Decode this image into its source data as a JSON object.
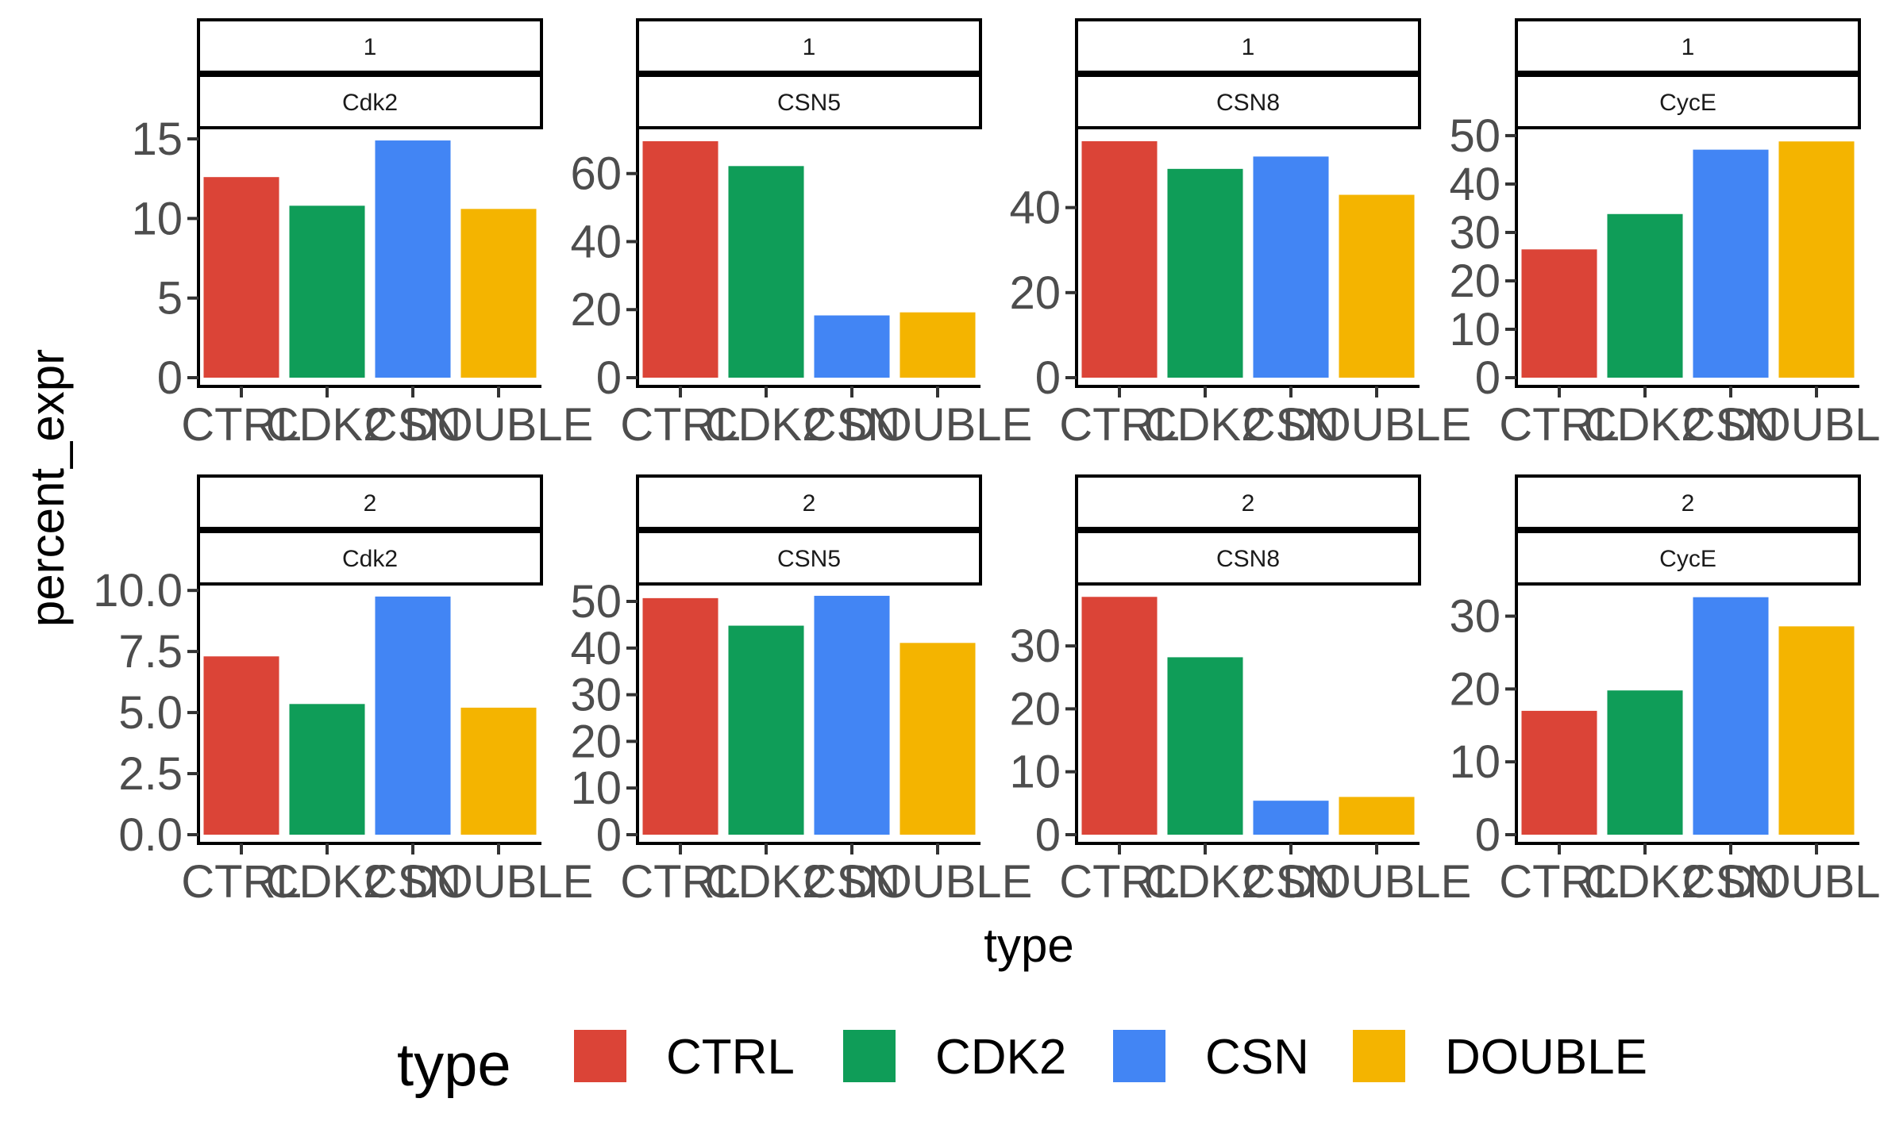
{
  "chart_data": {
    "type": "bar",
    "facet_rows": 2,
    "facet_cols": 4,
    "categories": [
      "CTRL",
      "CDK2",
      "CSN",
      "DOUBLE"
    ],
    "xlabel": "type",
    "ylabel": "percent_expr",
    "legend": {
      "title": "type",
      "position": "bottom",
      "entries": [
        "CTRL",
        "CDK2",
        "CSN",
        "DOUBLE"
      ]
    },
    "colors": {
      "CTRL": "#db4437",
      "CDK2": "#0f9d58",
      "CSN": "#4285f4",
      "DOUBLE": "#f4b400"
    },
    "grid": false,
    "panels": [
      {
        "strip_top": "1",
        "strip_bottom": "Cdk2",
        "values": [
          12.6,
          10.8,
          14.9,
          10.6
        ],
        "ylim": [
          0,
          15.6
        ],
        "yticks": [
          "0",
          "5",
          "10",
          "15"
        ]
      },
      {
        "strip_top": "1",
        "strip_bottom": "CSN5",
        "values": [
          69.5,
          62.2,
          18.3,
          19.2
        ],
        "ylim": [
          0,
          73
        ],
        "yticks": [
          "0",
          "20",
          "40",
          "60"
        ]
      },
      {
        "strip_top": "1",
        "strip_bottom": "CSN8",
        "values": [
          55.6,
          49.1,
          52.0,
          43.0
        ],
        "ylim": [
          0,
          58.4
        ],
        "yticks": [
          "0",
          "20",
          "40"
        ]
      },
      {
        "strip_top": "1",
        "strip_bottom": "CycE",
        "values": [
          26.5,
          33.8,
          47.1,
          48.8
        ],
        "ylim": [
          0,
          51.3
        ],
        "yticks": [
          "0",
          "10",
          "20",
          "30",
          "40",
          "50"
        ]
      },
      {
        "strip_top": "2",
        "strip_bottom": "Cdk2",
        "values": [
          7.3,
          5.35,
          9.75,
          5.2
        ],
        "ylim": [
          0,
          10.2
        ],
        "yticks": [
          "0.0",
          "2.5",
          "5.0",
          "7.5",
          "10.0"
        ]
      },
      {
        "strip_top": "2",
        "strip_bottom": "CSN5",
        "values": [
          50.7,
          44.8,
          51.2,
          41.1
        ],
        "ylim": [
          0,
          53.4
        ],
        "yticks": [
          "0",
          "10",
          "20",
          "30",
          "40",
          "50"
        ]
      },
      {
        "strip_top": "2",
        "strip_bottom": "CSN8",
        "values": [
          37.8,
          28.2,
          5.4,
          6.0
        ],
        "ylim": [
          0,
          39.6
        ],
        "yticks": [
          "0",
          "10",
          "20",
          "30"
        ]
      },
      {
        "strip_top": "2",
        "strip_bottom": "CycE",
        "values": [
          17.0,
          19.8,
          32.6,
          28.6
        ],
        "ylim": [
          0,
          34.2
        ],
        "yticks": [
          "0",
          "10",
          "20",
          "30"
        ]
      }
    ]
  }
}
